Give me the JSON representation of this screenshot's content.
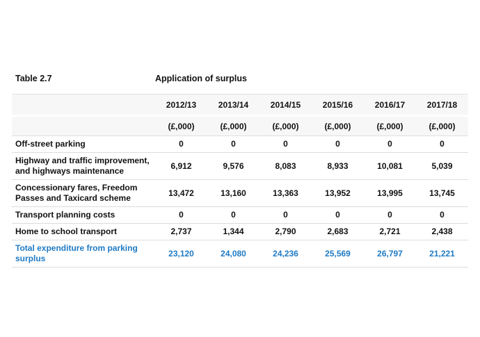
{
  "header": {
    "table_label": "Table 2.7",
    "title": "Application of surplus"
  },
  "table": {
    "columns": [
      "2012/13",
      "2013/14",
      "2014/15",
      "2015/16",
      "2016/17",
      "2017/18"
    ],
    "units": [
      "(£,000)",
      "(£,000)",
      "(£,000)",
      "(£,000)",
      "(£,000)",
      "(£,000)"
    ],
    "rows": [
      {
        "label": "Off-street parking",
        "values": [
          "0",
          "0",
          "0",
          "0",
          "0",
          "0"
        ]
      },
      {
        "label": "Highway and traffic improvement, and highways maintenance",
        "values": [
          "6,912",
          "9,576",
          "8,083",
          "8,933",
          "10,081",
          "5,039"
        ]
      },
      {
        "label": "Concessionary fares, Freedom Passes and Taxicard scheme",
        "values": [
          "13,472",
          "13,160",
          "13,363",
          "13,952",
          "13,995",
          "13,745"
        ]
      },
      {
        "label": "Transport planning costs",
        "values": [
          "0",
          "0",
          "0",
          "0",
          "0",
          "0"
        ]
      },
      {
        "label": "Home to school transport",
        "values": [
          "2,737",
          "1,344",
          "2,790",
          "2,683",
          "2,721",
          "2,438"
        ]
      },
      {
        "label": "Total expenditure from parking surplus",
        "values": [
          "23,120",
          "24,080",
          "24,236",
          "25,569",
          "26,797",
          "21,221"
        ]
      }
    ]
  },
  "colors": {
    "total_accent": "#1e7ac4",
    "header_background": "#f7f7f7",
    "row_border": "#dcdcdc",
    "body_text": "#111111"
  },
  "chart_data": {
    "type": "table",
    "title": "Application of surplus",
    "categories": [
      "2012/13",
      "2013/14",
      "2014/15",
      "2015/16",
      "2016/17",
      "2017/18"
    ],
    "unit": "£,000",
    "series": [
      {
        "name": "Off-street parking",
        "values": [
          0,
          0,
          0,
          0,
          0,
          0
        ]
      },
      {
        "name": "Highway and traffic improvement, and highways maintenance",
        "values": [
          6912,
          9576,
          8083,
          8933,
          10081,
          5039
        ]
      },
      {
        "name": "Concessionary fares, Freedom Passes and Taxicard scheme",
        "values": [
          13472,
          13160,
          13363,
          13952,
          13995,
          13745
        ]
      },
      {
        "name": "Transport planning costs",
        "values": [
          0,
          0,
          0,
          0,
          0,
          0
        ]
      },
      {
        "name": "Home to school transport",
        "values": [
          2737,
          1344,
          2790,
          2683,
          2721,
          2438
        ]
      },
      {
        "name": "Total expenditure from parking surplus",
        "values": [
          23120,
          24080,
          24236,
          25569,
          26797,
          21221
        ]
      }
    ]
  }
}
